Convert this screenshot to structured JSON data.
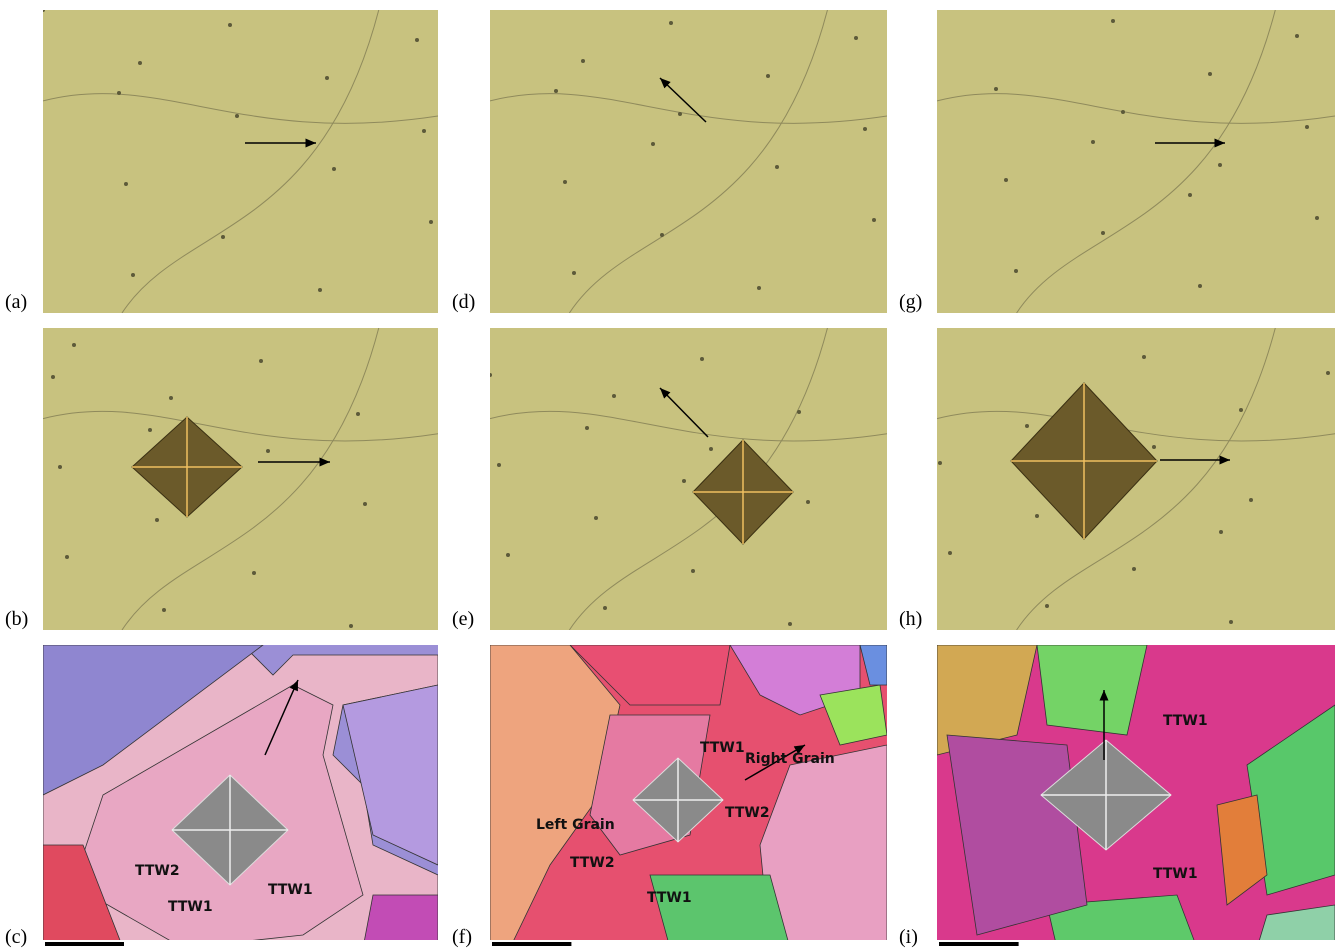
{
  "panels": [
    {
      "label": "(a)",
      "annotations": []
    },
    {
      "label": "(b)",
      "annotations": []
    },
    {
      "label": "(c)",
      "annotations": [
        "TTW2",
        "TTW1",
        "TTW1"
      ]
    },
    {
      "label": "(d)",
      "annotations": []
    },
    {
      "label": "(e)",
      "annotations": []
    },
    {
      "label": "(f)",
      "annotations": [
        "TTW1",
        "Right Grain",
        "TTW2",
        "Left Grain",
        "TTW2",
        "TTW1"
      ]
    },
    {
      "label": "(g)",
      "annotations": []
    },
    {
      "label": "(h)",
      "annotations": []
    },
    {
      "label": "(i)",
      "annotations": [
        "TTW1",
        "TTW1"
      ]
    }
  ]
}
